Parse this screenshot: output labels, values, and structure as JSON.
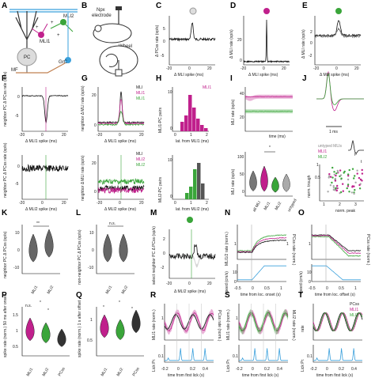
{
  "colors": {
    "mli1": "#c0208c",
    "mli2": "#3aa53a",
    "pc": "#222222",
    "untyped": "#9a9a9a",
    "speed": "#3aa0dc",
    "lick": "#3aa0dc"
  },
  "panel_letters": [
    "A",
    "B",
    "C",
    "D",
    "E",
    "F",
    "G",
    "H",
    "I",
    "J",
    "K",
    "L",
    "M",
    "N",
    "O",
    "P",
    "Q",
    "R",
    "S",
    "T"
  ],
  "A": {
    "mli2": "MLI2",
    "mli1": "MLI1",
    "pc": "PC",
    "grc": "GrC",
    "mf": "MF",
    "plus1": "+",
    "plus2": "+",
    "plus3": "+"
  },
  "B": {
    "electrode": "Npx",
    "electrode2": "electrode",
    "wheel": "Wheel"
  },
  "C": {
    "ylabel": "Δ PCss rate (sp/s)",
    "xlabel": "Δ MLI spike (ms)",
    "y_top": "5",
    "y_mid": "0",
    "y_bot": "-5",
    "xticks": [
      "-20",
      "0",
      "20"
    ]
  },
  "D": {
    "ylabel": "Δ MLI rate (sp/s)",
    "xlabel": "Δ MLI spike (ms)",
    "yticks": [
      "20",
      "0"
    ],
    "xticks": [
      "-20",
      "0",
      "20"
    ]
  },
  "E": {
    "ylabel": "Δ MLI rate (sp/s)",
    "xlabel": "Δ MLI spike (ms)",
    "yticks": [
      "2",
      "0",
      "-2"
    ],
    "xticks": [
      "-20",
      "0",
      "20"
    ]
  },
  "F": {
    "ylabel": "neighbor PC Δ PCss rate (sp/s)",
    "xlabel1": "Δ MLI1 spike (ms)",
    "xlabel2": "Δ MLI2 spike (ms)",
    "yticks_top": [
      "0",
      "-5"
    ],
    "yticks_bot": [
      "0",
      "-5"
    ],
    "xticks": [
      "-20",
      "0",
      "20"
    ]
  },
  "G": {
    "ylabel": "neighbor Δ MLI rate (sp/s)",
    "xlabel1": "Δ MLI1 spike (ms)",
    "xlabel2": "Δ MLI2 spike (ms)",
    "legend_top": [
      "MLI",
      "MLI1",
      "MLI1"
    ],
    "legend_bot": [
      "MLI",
      "MLI2",
      "MLI2"
    ],
    "yticks_top": [
      "20",
      "0"
    ],
    "yticks_bot": [
      "20",
      "0"
    ],
    "xticks": [
      "-20",
      "0",
      "20"
    ]
  },
  "H": {
    "ylabel_top": "MLI1-PC pairs",
    "ylabel_bot": "MLI2-PC pairs",
    "xlabel_top": "lat. from MLI1 (ms)",
    "xlabel_bot": "lat. from MLI2 (ms)",
    "legend": "MLI1",
    "yticks_top": [
      "10",
      "0"
    ],
    "yticks_bot": [
      "10",
      "0"
    ],
    "xticks": [
      "0",
      "1",
      "2"
    ]
  },
  "I": {
    "ylabel_top": "MLI rate (sp/s)",
    "xlabel_top": "time (ms)",
    "ylabel_bot": "MLI rate (sp/s)",
    "cats": [
      "all MLI",
      "MLI1",
      "MLI2",
      "untyped"
    ],
    "star": "*",
    "yticks_top": [
      "40",
      "20"
    ],
    "yticks_bot": [
      "100",
      "50",
      "0"
    ]
  },
  "J": {
    "scale": "1 ms",
    "legend": [
      "untyped MLIs",
      "MLI1",
      "MLI2"
    ],
    "ylabel": "norm. trough",
    "xlabel": "norm. peak",
    "t_label": "t",
    "p_label": "p",
    "yticks": [
      "0.5",
      "1"
    ],
    "xticks": [
      "1",
      "2",
      "3"
    ]
  },
  "K": {
    "ylabel": "neighbor PC Δ PCss (sp/s)",
    "star": "**",
    "cats": [
      "MLI1",
      "MLI2"
    ],
    "yticks": [
      "10",
      "0",
      "-10"
    ]
  },
  "L": {
    "ylabel": "non-neighbor PC Δ PCss (sp/s)",
    "star": "n.s.",
    "cats": [
      "MLI1",
      "MLI2"
    ],
    "yticks": [
      "10",
      "0",
      "-10"
    ]
  },
  "M": {
    "ylabel": "select neighbor PC Δ PCss (sp/s)",
    "xlabel": "Δ MLI2 spike (ms)",
    "yticks": [
      "2",
      "0",
      "-2"
    ],
    "xticks": [
      "-20",
      "0",
      "20"
    ]
  },
  "N": {
    "ylabel_left": "MLI1/2 rate (norm.)",
    "ylabel_right": "PCss rate (norm.)",
    "ylabel_speed": "speed (cm/s)",
    "xlabel": "time from loc. onset (s)",
    "xticks": [
      "-0.5",
      "0",
      "0.5",
      "1"
    ],
    "yticks": [
      "1"
    ],
    "yticks_r": [
      "1"
    ],
    "speed_ticks": [
      "10",
      "0"
    ]
  },
  "O": {
    "ylabel_right": "PCss rate (norm.)",
    "ylabel_speed": "speed (cm/s)",
    "xlabel": "time from loc. offset (s)",
    "xticks": [
      "-0.5",
      "0",
      "0.5",
      "1"
    ],
    "yticks": [
      "1"
    ],
    "speed_ticks": [
      "10",
      "0"
    ]
  },
  "P": {
    "ylabel": "spike rate (norm.) 50 ms after onset",
    "cats": [
      "MLI1",
      "MLI2",
      "PCss"
    ],
    "stars": [
      "n.s.",
      "*",
      "*"
    ],
    "yticks": [
      "1.5",
      "1",
      "0.5"
    ]
  },
  "Q": {
    "ylabel": "spike rate (norm.) 1 s after offset",
    "cats": [
      "MLI1",
      "MLI2",
      "PCss"
    ],
    "stars": [
      "*",
      "*",
      "*"
    ],
    "yticks": [
      "1",
      "0.5"
    ]
  },
  "R": {
    "ylabel_left": "MLI1 rate (norm.)",
    "ylabel_right": "PCss rate (norm.)",
    "ylabel_lick": "Lick Pr.",
    "xlabel": "time from first lick (s)",
    "xticks": [
      "-0.2",
      "0",
      "0.2",
      "0.4"
    ],
    "yticks": [
      "1"
    ],
    "lick_ticks": [
      "0.1"
    ]
  },
  "S": {
    "ylabel_left": "MLI1 rate (norm.)",
    "ylabel_right": "MLI2 rate (norm.)",
    "ylabel_lick": "Lick Pr.",
    "xlabel": "time from first lick (s)",
    "xticks": [
      "-0.2",
      "0",
      "0.2",
      "0.4"
    ],
    "yticks": [
      "1"
    ],
    "lick_ticks": [
      "0.1"
    ]
  },
  "T": {
    "ylabel": "rate",
    "ylabel_lick": "Lick Pr.",
    "xlabel": "time from first lick (s)",
    "legend": [
      "PCss",
      "MLI1",
      "MLI2"
    ],
    "xticks": [
      "-0.2",
      "0",
      "0.2",
      "0.4"
    ],
    "lick_ticks": [
      "0.1"
    ]
  }
}
